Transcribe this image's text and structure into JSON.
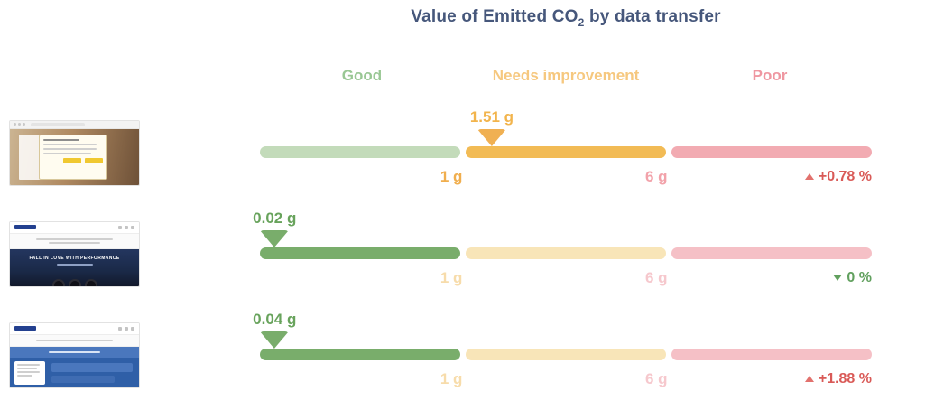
{
  "title": {
    "pre": "Value of Emitted CO",
    "sub": "2",
    "post": " by data transfer"
  },
  "legend": [
    {
      "label": "Good"
    },
    {
      "label": "Needs improvement"
    },
    {
      "label": "Poor"
    }
  ],
  "rows": [
    {
      "value_label": "1.51 g",
      "marker_left_pct": 37.9,
      "threshold_low": "1 g",
      "threshold_high": "6 g",
      "trend_label": "+0.78 %",
      "trend_direction": "up"
    },
    {
      "value_label": "0.02 g",
      "marker_left_pct": 2.4,
      "threshold_low": "1 g",
      "threshold_high": "6 g",
      "trend_label": "0 %",
      "trend_direction": "down"
    },
    {
      "value_label": "0.04 g",
      "marker_left_pct": 2.4,
      "threshold_low": "1 g",
      "threshold_high": "6 g",
      "trend_label": "+1.88 %",
      "trend_direction": "up"
    }
  ],
  "thumbnails": [
    {
      "name": "cookie-consent-page"
    },
    {
      "name": "homepage-hero",
      "hero_text": "FALL IN LOVE WITH PERFORMANCE"
    },
    {
      "name": "blue-portal-page"
    }
  ],
  "colors": {
    "title": "#46577b",
    "good": "#79ad6b",
    "good_light": "#c3dbba",
    "needs_improvement": "#f2bb55",
    "needs_improvement_light": "#f8e5b8",
    "poor": "#f2abb2",
    "poor_light": "#f5c0c6",
    "trend_up": "#d95a57",
    "trend_down": "#61a05e"
  },
  "chart_data": {
    "type": "bar",
    "variant": "bullet-gauge",
    "title": "Value of Emitted CO2 by data transfer",
    "unit": "g",
    "zones": [
      {
        "label": "Good",
        "range": [
          0,
          1
        ]
      },
      {
        "label": "Needs improvement",
        "range": [
          1,
          6
        ]
      },
      {
        "label": "Poor",
        "range": [
          6,
          null
        ]
      }
    ],
    "thresholds_g": [
      1,
      6
    ],
    "rows": [
      {
        "value_g": 1.51,
        "zone": "Needs improvement",
        "change": "+0.78 %",
        "change_direction": "up"
      },
      {
        "value_g": 0.02,
        "zone": "Good",
        "change": "0 %",
        "change_direction": "down"
      },
      {
        "value_g": 0.04,
        "zone": "Good",
        "change": "+1.88 %",
        "change_direction": "up"
      }
    ],
    "legend_position": "top",
    "grid": false
  }
}
